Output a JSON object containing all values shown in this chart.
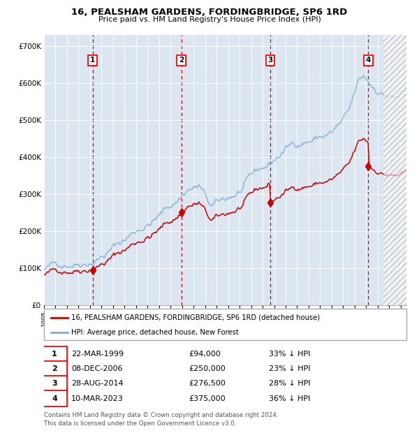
{
  "title": "16, PEALSHAM GARDENS, FORDINGBRIDGE, SP6 1RD",
  "subtitle": "Price paid vs. HM Land Registry's House Price Index (HPI)",
  "sales": [
    {
      "label": "1",
      "date": "22-MAR-1999",
      "price": 94000,
      "pct": "33% ↓ HPI"
    },
    {
      "label": "2",
      "date": "08-DEC-2006",
      "price": 250000,
      "pct": "23% ↓ HPI"
    },
    {
      "label": "3",
      "date": "28-AUG-2014",
      "price": 276500,
      "pct": "28% ↓ HPI"
    },
    {
      "label": "4",
      "date": "10-MAR-2023",
      "price": 375000,
      "pct": "36% ↓ HPI"
    }
  ],
  "sale_dates_decimal": [
    1999.22,
    2006.93,
    2014.65,
    2023.19
  ],
  "ylabel_ticks": [
    0,
    100000,
    200000,
    300000,
    400000,
    500000,
    600000,
    700000
  ],
  "ylabel_labels": [
    "£0",
    "£100K",
    "£200K",
    "£300K",
    "£400K",
    "£500K",
    "£600K",
    "£700K"
  ],
  "xlim": [
    1995.0,
    2026.5
  ],
  "ylim": [
    0,
    730000
  ],
  "hpi_color": "#7bafd4",
  "price_color": "#cc0000",
  "marker_color": "#cc0000",
  "bg_color": "#dce6f1",
  "legend_property": "16, PEALSHAM GARDENS, FORDINGBRIDGE, SP6 1RD (detached house)",
  "legend_hpi": "HPI: Average price, detached house, New Forest",
  "footer": "Contains HM Land Registry data © Crown copyright and database right 2024.\nThis data is licensed under the Open Government Licence v3.0.",
  "hatch_start": 2024.5,
  "hpi_anchors_t": [
    1995.0,
    1996.0,
    1997.5,
    1999.0,
    2000.5,
    2002.0,
    2003.5,
    2005.0,
    2006.5,
    2007.5,
    2008.5,
    2009.5,
    2010.5,
    2012.0,
    2013.5,
    2014.65,
    2016.0,
    2017.5,
    2018.5,
    2020.0,
    2021.5,
    2022.3,
    2022.8,
    2023.5,
    2024.5,
    2025.5
  ],
  "hpi_anchors_v": [
    97000,
    105000,
    125000,
    148000,
    178000,
    210000,
    248000,
    278000,
    318000,
    355000,
    362000,
    298000,
    303000,
    330000,
    365000,
    385000,
    425000,
    452000,
    463000,
    478000,
    515000,
    588000,
    600000,
    577000,
    563000,
    552000
  ],
  "hpi_noise_seed": 42,
  "hpi_noise_scale": 3500
}
